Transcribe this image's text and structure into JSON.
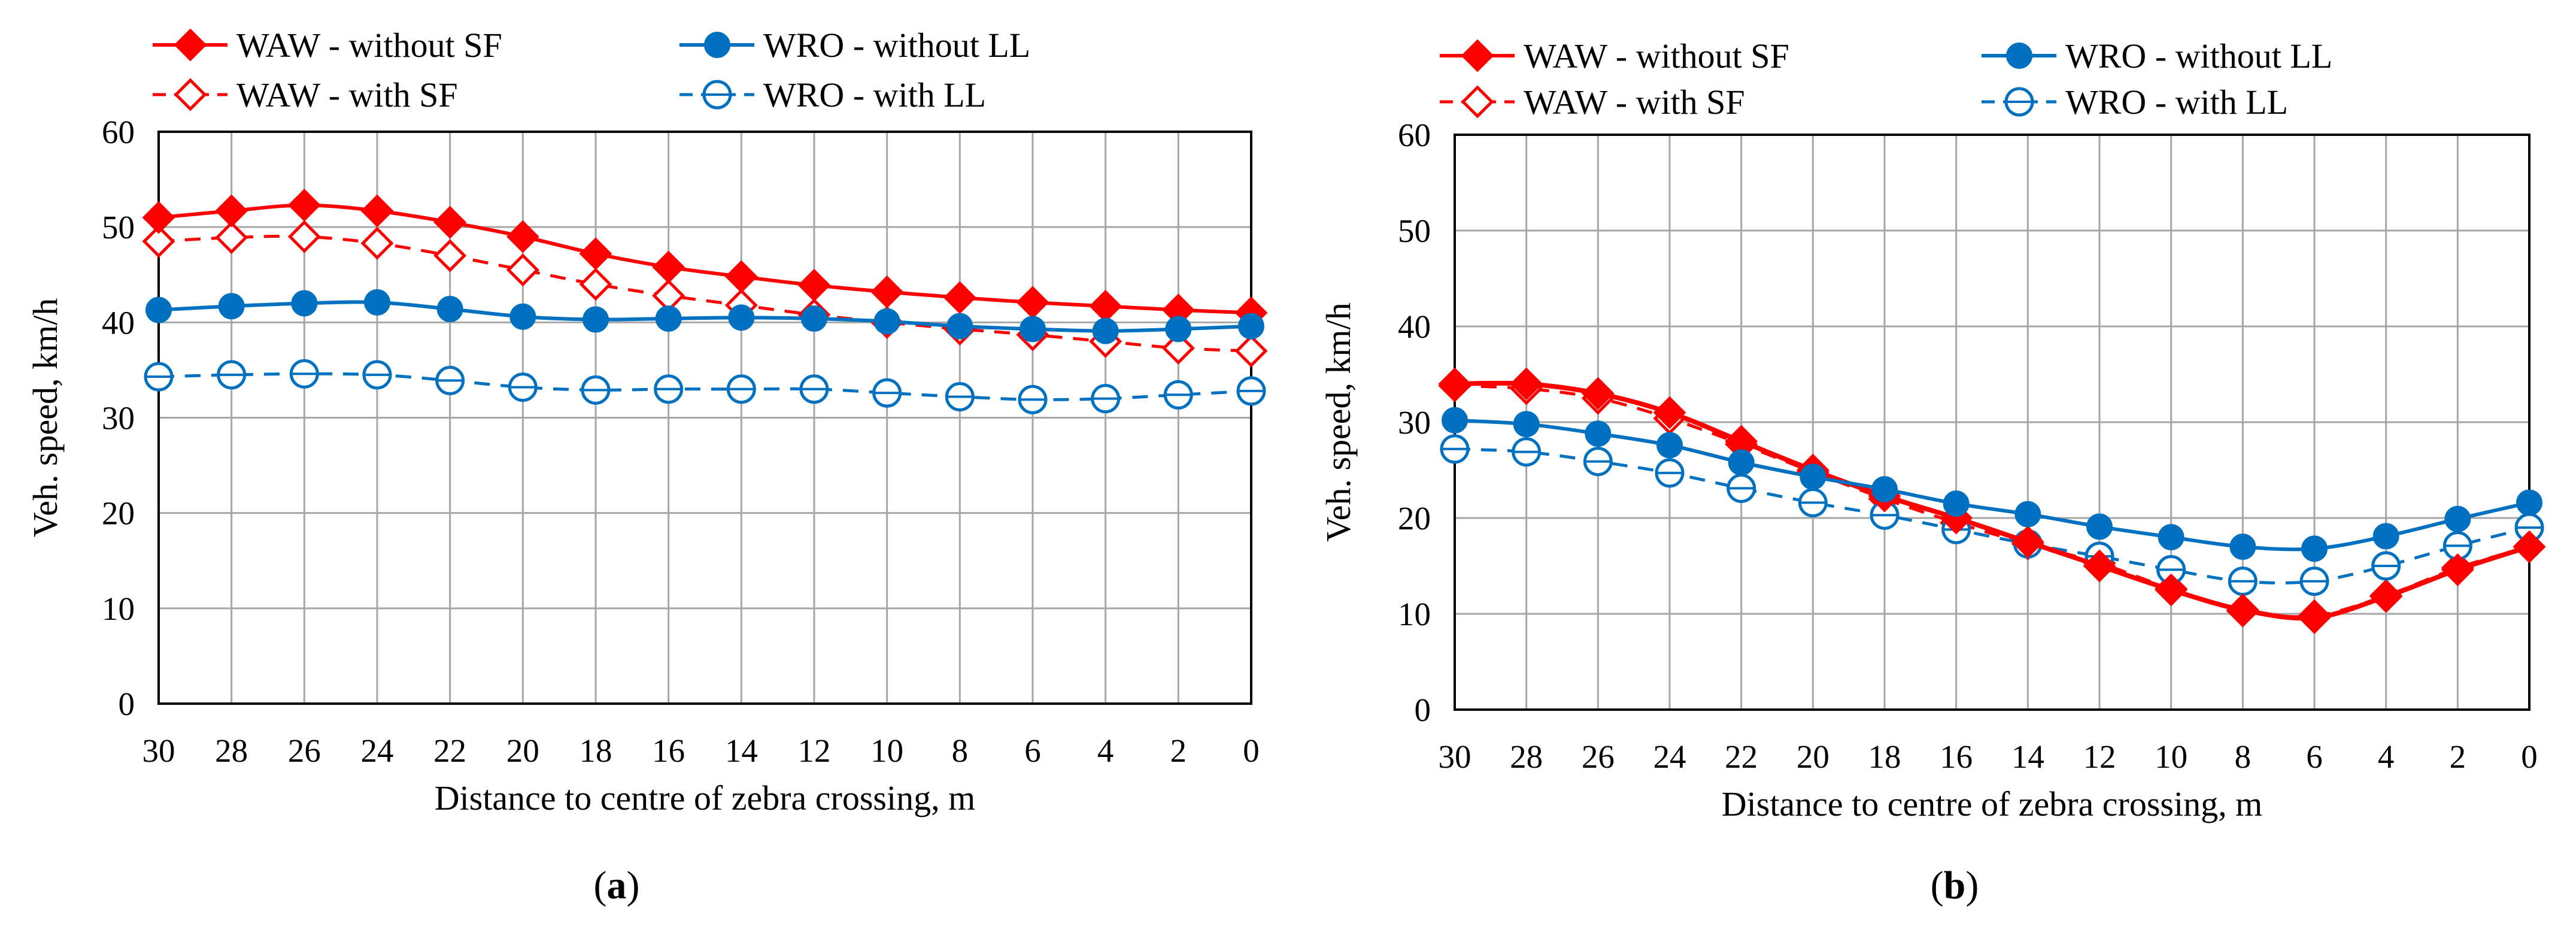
{
  "chart_data": [
    {
      "type": "line",
      "panel_label": "a",
      "xlabel": "Distance to centre of zebra crossing, m",
      "ylabel": "Veh. speed, km/h",
      "x": [
        30,
        28,
        26,
        24,
        22,
        20,
        18,
        16,
        14,
        12,
        10,
        8,
        6,
        4,
        2,
        0
      ],
      "x_tick_labels": [
        "30",
        "28",
        "26",
        "24",
        "22",
        "20",
        "18",
        "16",
        "14",
        "12",
        "10",
        "8",
        "6",
        "4",
        "2",
        "0"
      ],
      "y_tick_labels": [
        "0",
        "10",
        "20",
        "30",
        "40",
        "50",
        "60"
      ],
      "xlim": [
        30,
        0
      ],
      "ylim": [
        0,
        60
      ],
      "grid": true,
      "legend_position": "top",
      "series": [
        {
          "name": "WAW - without SF",
          "color": "#ff0000",
          "line": "solid",
          "marker": "filled-diamond",
          "values": [
            51.0,
            51.7,
            52.3,
            51.7,
            50.5,
            49.0,
            47.2,
            45.8,
            44.8,
            43.9,
            43.2,
            42.6,
            42.1,
            41.7,
            41.3,
            41.0
          ]
        },
        {
          "name": "WRO - without LL",
          "color": "#0070c0",
          "line": "solid",
          "marker": "filled-circle",
          "values": [
            41.3,
            41.7,
            42.0,
            42.1,
            41.4,
            40.6,
            40.3,
            40.4,
            40.5,
            40.4,
            40.1,
            39.6,
            39.3,
            39.1,
            39.3,
            39.6
          ]
        },
        {
          "name": "WAW - with SF",
          "color": "#ff0000",
          "line": "dashed",
          "marker": "open-diamond",
          "values": [
            48.5,
            48.9,
            49.0,
            48.3,
            47.0,
            45.5,
            44.0,
            42.8,
            41.8,
            40.8,
            40.0,
            39.3,
            38.7,
            38.0,
            37.3,
            37.0
          ]
        },
        {
          "name": "WRO - with LL",
          "color": "#0070c0",
          "line": "dashed",
          "marker": "open-circle",
          "values": [
            34.3,
            34.5,
            34.6,
            34.5,
            33.9,
            33.2,
            32.9,
            33.0,
            33.0,
            33.0,
            32.6,
            32.2,
            31.9,
            32.0,
            32.4,
            32.8
          ]
        }
      ]
    },
    {
      "type": "line",
      "panel_label": "b",
      "xlabel": "Distance to centre of zebra crossing, m",
      "ylabel": "Veh. speed, km/h",
      "x": [
        30,
        28,
        26,
        24,
        22,
        20,
        18,
        16,
        14,
        12,
        10,
        8,
        6,
        4,
        2,
        0
      ],
      "x_tick_labels": [
        "30",
        "28",
        "26",
        "24",
        "22",
        "20",
        "18",
        "16",
        "14",
        "12",
        "10",
        "8",
        "6",
        "4",
        "2",
        "0"
      ],
      "y_tick_labels": [
        "0",
        "10",
        "20",
        "30",
        "40",
        "50",
        "60"
      ],
      "xlim": [
        30,
        0
      ],
      "ylim": [
        0,
        60
      ],
      "grid": true,
      "legend_position": "top",
      "series": [
        {
          "name": "WAW - without SF",
          "color": "#ff0000",
          "line": "solid",
          "marker": "filled-diamond",
          "values": [
            34.0,
            34.0,
            33.0,
            31.0,
            28.0,
            25.0,
            22.3,
            20.0,
            17.5,
            15.0,
            12.5,
            10.4,
            9.6,
            11.8,
            14.6,
            17.0
          ]
        },
        {
          "name": "WRO - without LL",
          "color": "#0070c0",
          "line": "solid",
          "marker": "filled-circle",
          "values": [
            30.2,
            29.8,
            28.8,
            27.6,
            25.8,
            24.3,
            23.0,
            21.5,
            20.4,
            19.1,
            18.0,
            17.0,
            16.8,
            18.1,
            19.9,
            21.6
          ]
        },
        {
          "name": "WAW - with SF",
          "color": "#ff0000",
          "line": "dashed",
          "marker": "open-diamond",
          "values": [
            33.8,
            33.5,
            32.5,
            30.4,
            27.7,
            24.8,
            22.0,
            19.5,
            17.3,
            15.3,
            12.6,
            10.3,
            9.8,
            11.9,
            14.8,
            17.0
          ]
        },
        {
          "name": "WRO - with LL",
          "color": "#0070c0",
          "line": "dashed",
          "marker": "open-circle",
          "values": [
            27.2,
            26.9,
            25.9,
            24.7,
            23.1,
            21.6,
            20.3,
            18.8,
            17.3,
            16.0,
            14.6,
            13.4,
            13.4,
            15.0,
            17.1,
            19.0
          ]
        }
      ]
    }
  ]
}
